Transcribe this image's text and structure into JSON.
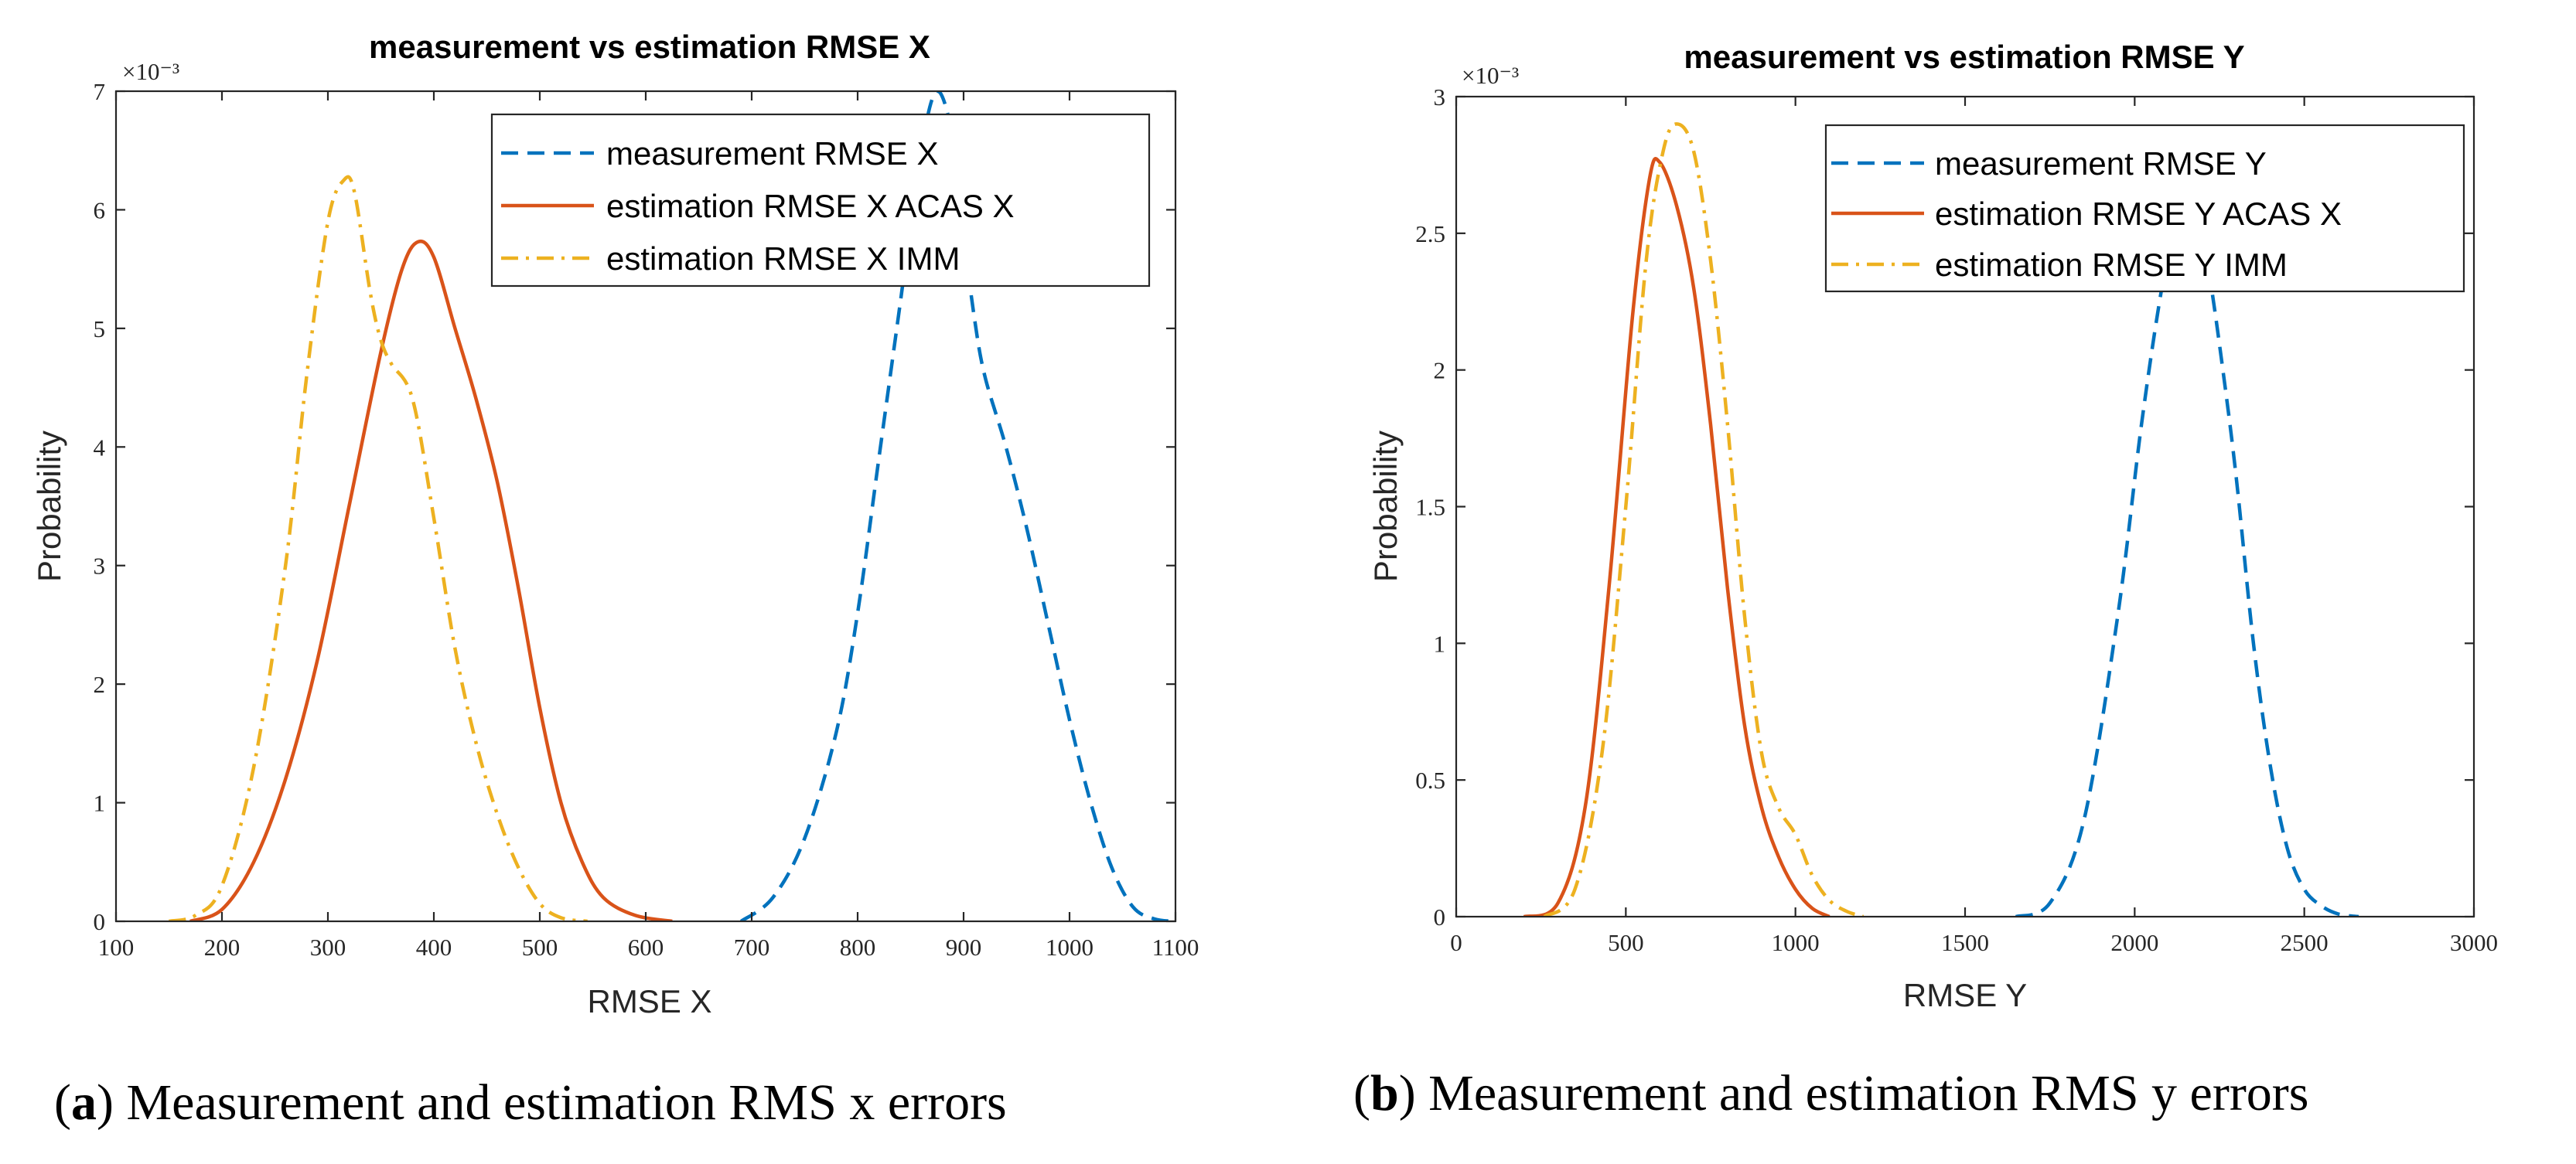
{
  "chart_data": [
    {
      "type": "line",
      "title": "measurement vs estimation RMSE X",
      "xlabel": "RMSE X",
      "ylabel": "Probability",
      "xlim": [
        100,
        1100
      ],
      "ylim": [
        0,
        7
      ],
      "y_exponent": "×10⁻³",
      "xticks": [
        "100",
        "200",
        "300",
        "400",
        "500",
        "600",
        "700",
        "800",
        "900",
        "1000",
        "1100"
      ],
      "yticks": [
        "0",
        "1",
        "2",
        "3",
        "4",
        "5",
        "6",
        "7"
      ],
      "legend_position": "top-right",
      "caption_letter": "a",
      "caption_text": " Measurement and estimation RMS x errors",
      "series": [
        {
          "name": "measurement RMSE X",
          "color": "#0072BD",
          "style": "dashed",
          "x": [
            690,
            720,
            750,
            780,
            800,
            820,
            840,
            860,
            875,
            890,
            900,
            910,
            920,
            940,
            960,
            980,
            1000,
            1020,
            1040,
            1060,
            1080,
            1100
          ],
          "y": [
            0.0,
            0.2,
            0.7,
            1.6,
            2.6,
            3.9,
            5.2,
            6.5,
            7.0,
            6.6,
            5.8,
            5.1,
            4.6,
            4.0,
            3.3,
            2.5,
            1.7,
            1.0,
            0.45,
            0.12,
            0.02,
            0.0
          ]
        },
        {
          "name": "estimation RMSE X ACAS X",
          "color": "#D95319",
          "style": "solid",
          "x": [
            170,
            200,
            230,
            260,
            290,
            320,
            350,
            370,
            385,
            400,
            420,
            440,
            460,
            480,
            500,
            520,
            540,
            560,
            590,
            625
          ],
          "y": [
            0.0,
            0.1,
            0.5,
            1.2,
            2.2,
            3.5,
            4.8,
            5.5,
            5.73,
            5.6,
            5.0,
            4.4,
            3.7,
            2.8,
            1.8,
            1.0,
            0.5,
            0.2,
            0.05,
            0.0
          ]
        },
        {
          "name": "estimation RMSE X IMM",
          "color": "#EDB120",
          "style": "dashdot",
          "x": [
            150,
            175,
            200,
            230,
            260,
            280,
            300,
            315,
            325,
            340,
            350,
            360,
            380,
            400,
            420,
            440,
            460,
            480,
            500,
            520,
            545
          ],
          "y": [
            0.0,
            0.05,
            0.3,
            1.3,
            3.0,
            4.6,
            5.9,
            6.25,
            6.15,
            5.3,
            4.9,
            4.7,
            4.4,
            3.4,
            2.3,
            1.5,
            0.9,
            0.45,
            0.15,
            0.03,
            0.0
          ]
        }
      ]
    },
    {
      "type": "line",
      "title": "measurement vs estimation RMSE Y",
      "xlabel": "RMSE Y",
      "ylabel": "Probability",
      "xlim": [
        0,
        3000
      ],
      "ylim": [
        0,
        3
      ],
      "y_exponent": "×10⁻³",
      "xticks": [
        "0",
        "500",
        "1000",
        "1500",
        "2000",
        "2500",
        "3000"
      ],
      "yticks": [
        "0",
        "0.5",
        "1",
        "1.5",
        "2",
        "2.5",
        "3"
      ],
      "legend_position": "top-right",
      "caption_letter": "b",
      "caption_text": " Measurement and estimation RMS y errors",
      "series": [
        {
          "name": "measurement RMSE Y",
          "color": "#0072BD",
          "style": "dashed",
          "x": [
            1650,
            1750,
            1850,
            1950,
            2020,
            2080,
            2130,
            2180,
            2220,
            2260,
            2300,
            2350,
            2400,
            2450,
            2500,
            2550,
            2600,
            2660
          ],
          "y": [
            0.0,
            0.05,
            0.35,
            1.1,
            1.8,
            2.3,
            2.6,
            2.6,
            2.35,
            2.0,
            1.6,
            1.0,
            0.55,
            0.25,
            0.1,
            0.04,
            0.01,
            0.0
          ]
        },
        {
          "name": "estimation RMSE Y ACAS X",
          "color": "#D95319",
          "style": "solid",
          "x": [
            200,
            300,
            380,
            450,
            520,
            570,
            600,
            650,
            700,
            750,
            800,
            850,
            900,
            950,
            1000,
            1050,
            1100
          ],
          "y": [
            0.0,
            0.05,
            0.4,
            1.2,
            2.2,
            2.7,
            2.76,
            2.6,
            2.3,
            1.8,
            1.2,
            0.7,
            0.4,
            0.22,
            0.1,
            0.03,
            0.0
          ]
        },
        {
          "name": "estimation RMSE Y IMM",
          "color": "#EDB120",
          "style": "dashdot",
          "x": [
            260,
            350,
            430,
            500,
            560,
            610,
            650,
            700,
            750,
            800,
            850,
            900,
            950,
            1000,
            1050,
            1100,
            1150,
            1200
          ],
          "y": [
            0.0,
            0.1,
            0.6,
            1.5,
            2.4,
            2.8,
            2.9,
            2.8,
            2.4,
            1.8,
            1.1,
            0.6,
            0.4,
            0.3,
            0.15,
            0.06,
            0.02,
            0.0
          ]
        }
      ]
    }
  ]
}
